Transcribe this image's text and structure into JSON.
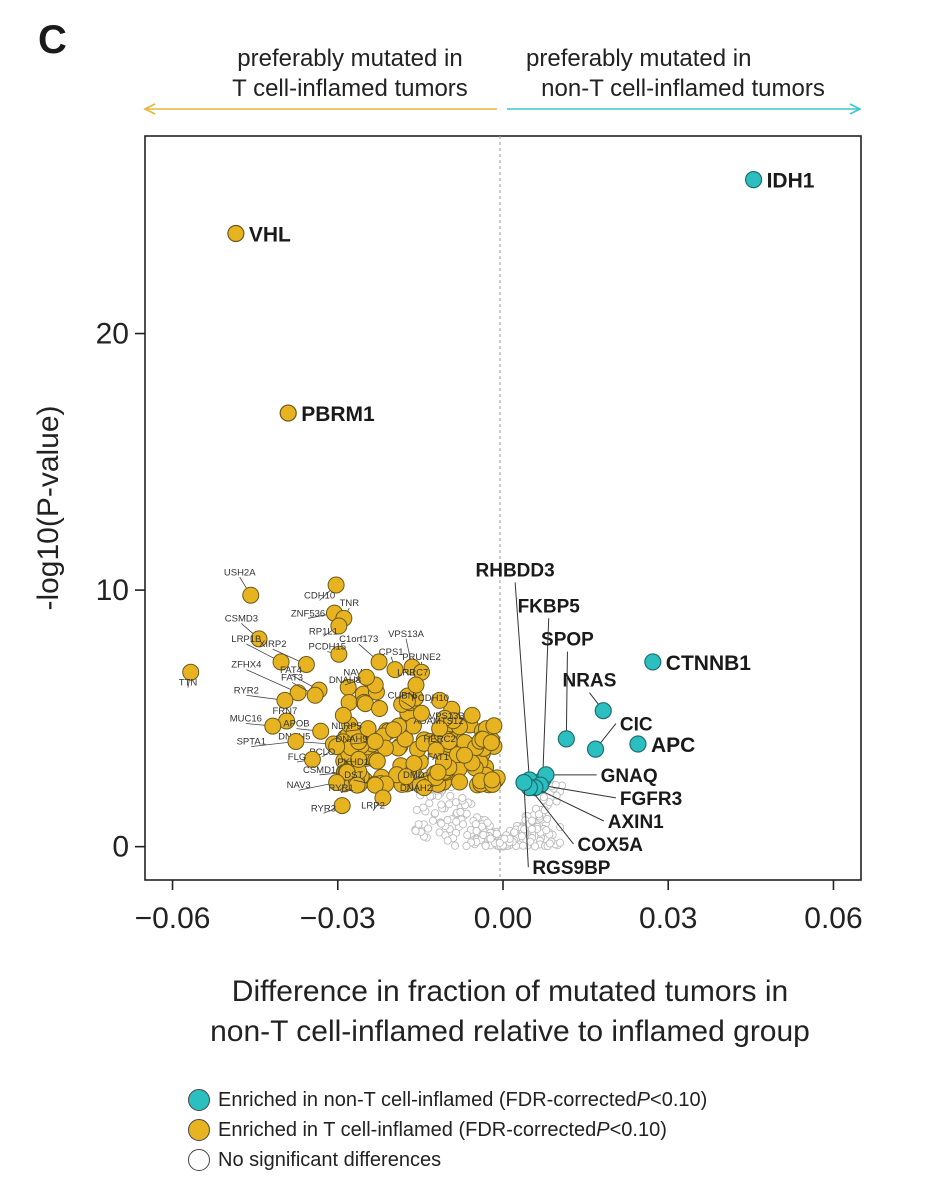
{
  "panel_label": "C",
  "colors": {
    "non_inflamed": "#2bbfc0",
    "inflamed": "#e7b320",
    "ns_fill": "#ffffff",
    "inflamed_arrow": "#e8b53a",
    "non_inflamed_arrow": "#3ec5cf"
  },
  "header": {
    "left_line1": "preferably mutated in",
    "left_line2": "T cell-inflamed tumors",
    "right_line1": "preferably mutated in",
    "right_line2": "non-T cell-inflamed tumors"
  },
  "chart_data": {
    "type": "scatter",
    "title": "",
    "xlabel_line1": "Difference in fraction of mutated tumors in",
    "xlabel_line2": "non-T cell-inflamed relative to inflamed group",
    "ylabel": "-log10(P-value)",
    "xlim": [
      -0.065,
      0.065
    ],
    "ylim": [
      -1.3,
      27.7
    ],
    "x_ticks": [
      -0.06,
      -0.03,
      0.0,
      0.03,
      0.06
    ],
    "x_tick_labels": [
      "−0.06",
      "−0.03",
      "0.00",
      "0.03",
      "0.06"
    ],
    "y_ticks": [
      0,
      10,
      20
    ],
    "y_tick_labels": [
      "0",
      "10",
      "20"
    ],
    "labeled_points": [
      {
        "gene": "IDH1",
        "x": 0.0455,
        "y": 26.0,
        "group": "non_inflamed",
        "label_pos": "right"
      },
      {
        "gene": "VHL",
        "x": -0.0485,
        "y": 23.9,
        "group": "inflamed",
        "label_pos": "right"
      },
      {
        "gene": "PBRM1",
        "x": -0.039,
        "y": 16.9,
        "group": "inflamed",
        "label_pos": "right"
      },
      {
        "gene": "CTNNB1",
        "x": 0.0272,
        "y": 7.2,
        "group": "non_inflamed",
        "label_pos": "right"
      },
      {
        "gene": "APC",
        "x": 0.0245,
        "y": 4.0,
        "group": "non_inflamed",
        "label_pos": "right"
      },
      {
        "gene": "NRAS",
        "x": 0.0182,
        "y": 5.3,
        "group": "non_inflamed",
        "label_x": 0.0157,
        "label_y": 6.0
      },
      {
        "gene": "CIC",
        "x": 0.0168,
        "y": 3.8,
        "group": "non_inflamed",
        "label_x": 0.0205,
        "label_y": 4.8
      },
      {
        "gene": "SPOP",
        "x": 0.0115,
        "y": 4.2,
        "group": "non_inflamed",
        "label_x": 0.0117,
        "label_y": 7.6
      },
      {
        "gene": "FKBP5",
        "x": 0.0072,
        "y": 2.6,
        "group": "non_inflamed",
        "label_x": 0.0083,
        "label_y": 8.9
      },
      {
        "gene": "RHBDD3",
        "x": 0.0048,
        "y": 2.6,
        "group": "non_inflamed",
        "label_x": 0.0022,
        "label_y": 10.3
      },
      {
        "gene": "GNAQ",
        "x": 0.0078,
        "y": 2.8,
        "group": "non_inflamed",
        "label_x": 0.017,
        "label_y": 2.8
      },
      {
        "gene": "FGFR3",
        "x": 0.0068,
        "y": 2.4,
        "group": "non_inflamed",
        "label_x": 0.0205,
        "label_y": 1.9
      },
      {
        "gene": "AXIN1",
        "x": 0.0058,
        "y": 2.3,
        "group": "non_inflamed",
        "label_x": 0.0183,
        "label_y": 1.0
      },
      {
        "gene": "COX5A",
        "x": 0.0048,
        "y": 2.3,
        "group": "non_inflamed",
        "label_x": 0.0128,
        "label_y": 0.1
      },
      {
        "gene": "RGS9BP",
        "x": 0.0038,
        "y": 2.5,
        "group": "non_inflamed",
        "label_x": 0.0046,
        "label_y": -0.8
      }
    ],
    "small_labeled_points": [
      {
        "gene": "TTN",
        "x": -0.0567,
        "y": 6.8,
        "label_x": -0.0572,
        "label_y": 6.2
      },
      {
        "gene": "USH2A",
        "x": -0.0458,
        "y": 9.8,
        "label_x": -0.0478,
        "label_y": 10.5
      },
      {
        "gene": "CSMD3",
        "x": -0.0443,
        "y": 8.1,
        "label_x": -0.0475,
        "label_y": 8.7
      },
      {
        "gene": "LRP1B",
        "x": -0.0403,
        "y": 7.2,
        "label_x": -0.0466,
        "label_y": 7.9
      },
      {
        "gene": "XIRP2",
        "x": -0.0357,
        "y": 7.1,
        "label_x": -0.0418,
        "label_y": 7.7
      },
      {
        "gene": "ZFHX4",
        "x": -0.0372,
        "y": 6.0,
        "label_x": -0.0466,
        "label_y": 6.9
      },
      {
        "gene": "RYR2",
        "x": -0.0396,
        "y": 5.7,
        "label_x": -0.0466,
        "label_y": 5.9
      },
      {
        "gene": "FAT4",
        "x": -0.0334,
        "y": 6.1,
        "label_x": -0.0385,
        "label_y": 6.7
      },
      {
        "gene": "FAT3",
        "x": -0.0341,
        "y": 5.9,
        "label_x": -0.0383,
        "label_y": 6.4
      },
      {
        "gene": "FRN7",
        "x": -0.0393,
        "y": 4.9,
        "label_x": -0.0396,
        "label_y": 5.1
      },
      {
        "gene": "MUC16",
        "x": -0.0418,
        "y": 4.7,
        "label_x": -0.0467,
        "label_y": 4.8
      },
      {
        "gene": "APOB",
        "x": -0.0331,
        "y": 4.5,
        "label_x": -0.0375,
        "label_y": 4.6
      },
      {
        "gene": "DNAH5",
        "x": -0.0308,
        "y": 4.0,
        "label_x": -0.0379,
        "label_y": 4.1
      },
      {
        "gene": "SPTA1",
        "x": -0.0376,
        "y": 4.1,
        "label_x": -0.0457,
        "label_y": 3.9
      },
      {
        "gene": "PCLO",
        "x": -0.0302,
        "y": 3.9,
        "label_x": -0.0328,
        "label_y": 3.5
      },
      {
        "gene": "FLG",
        "x": -0.0346,
        "y": 3.4,
        "label_x": -0.0374,
        "label_y": 3.3
      },
      {
        "gene": "PKHD1",
        "x": -0.0262,
        "y": 3.4,
        "label_x": -0.0272,
        "label_y": 3.1
      },
      {
        "gene": "CSMD1",
        "x": -0.0283,
        "y": 2.9,
        "label_x": -0.0333,
        "label_y": 2.8
      },
      {
        "gene": "NAV3",
        "x": -0.0302,
        "y": 2.5,
        "label_x": -0.0371,
        "label_y": 2.2
      },
      {
        "gene": "RYR1",
        "x": -0.0265,
        "y": 2.4,
        "label_x": -0.0294,
        "label_y": 2.1
      },
      {
        "gene": "RYR3",
        "x": -0.0292,
        "y": 1.6,
        "label_x": -0.0326,
        "label_y": 1.3
      },
      {
        "gene": "DST",
        "x": -0.0232,
        "y": 2.4,
        "label_x": -0.0271,
        "label_y": 2.6
      },
      {
        "gene": "LRP2",
        "x": -0.0218,
        "y": 1.9,
        "label_x": -0.0236,
        "label_y": 1.4
      },
      {
        "gene": "DNAH2",
        "x": -0.0143,
        "y": 2.3,
        "label_x": -0.0158,
        "label_y": 2.1
      },
      {
        "gene": "CDH10",
        "x": -0.0303,
        "y": 10.2,
        "label_x": -0.0333,
        "label_y": 9.6
      },
      {
        "gene": "ZNF536",
        "x": -0.0306,
        "y": 9.1,
        "label_x": -0.0354,
        "label_y": 8.9
      },
      {
        "gene": "TNR",
        "x": -0.0289,
        "y": 8.9,
        "label_x": -0.0279,
        "label_y": 9.3
      },
      {
        "gene": "RP1L1",
        "x": -0.0298,
        "y": 8.6,
        "label_x": -0.0326,
        "label_y": 8.2
      },
      {
        "gene": "PCDH15",
        "x": -0.0298,
        "y": 7.5,
        "label_x": -0.0319,
        "label_y": 7.6
      },
      {
        "gene": "C1orf173",
        "x": -0.0225,
        "y": 7.2,
        "label_x": -0.0262,
        "label_y": 7.9
      },
      {
        "gene": "VPS13A",
        "x": -0.0165,
        "y": 7.0,
        "label_x": -0.0176,
        "label_y": 8.1
      },
      {
        "gene": "CPS1",
        "x": -0.0196,
        "y": 6.9,
        "label_x": -0.0203,
        "label_y": 7.4
      },
      {
        "gene": "PRUNE2",
        "x": -0.0148,
        "y": 6.8,
        "label_x": -0.0148,
        "label_y": 7.2
      },
      {
        "gene": "LRRC7",
        "x": -0.0158,
        "y": 6.3,
        "label_x": -0.0164,
        "label_y": 6.6
      },
      {
        "gene": "NAV2",
        "x": -0.0232,
        "y": 6.3,
        "label_x": -0.0268,
        "label_y": 6.6
      },
      {
        "gene": "PCDH10",
        "x": -0.0115,
        "y": 5.7,
        "label_x": -0.0132,
        "label_y": 5.6
      },
      {
        "gene": "VPS13B",
        "x": -0.0106,
        "y": 5.0,
        "label_x": -0.0102,
        "label_y": 4.9
      },
      {
        "gene": "ADAMTS12",
        "x": -0.0115,
        "y": 4.6,
        "label_x": -0.0117,
        "label_y": 4.7
      },
      {
        "gene": "CUBN",
        "x": -0.0148,
        "y": 5.2,
        "label_x": -0.0185,
        "label_y": 5.7
      },
      {
        "gene": "HERC2",
        "x": -0.0098,
        "y": 4.1,
        "label_x": -0.0115,
        "label_y": 4.0
      },
      {
        "gene": "FAT1",
        "x": -0.0108,
        "y": 3.3,
        "label_x": -0.0118,
        "label_y": 3.3
      },
      {
        "gene": "DMD",
        "x": -0.0118,
        "y": 2.9,
        "label_x": -0.0162,
        "label_y": 2.6
      },
      {
        "gene": "NLRP5",
        "x": -0.0245,
        "y": 4.6,
        "label_x": -0.0284,
        "label_y": 4.5
      },
      {
        "gene": "DNAH9",
        "x": -0.0232,
        "y": 4.1,
        "label_x": -0.0275,
        "label_y": 4.0
      },
      {
        "gene": "DNAH8",
        "x": -0.0248,
        "y": 6.6,
        "label_x": -0.0287,
        "label_y": 6.3
      }
    ],
    "inflamed_cloud_n": 150,
    "inflamed_cloud_range": {
      "x": [
        -0.029,
        -0.0005
      ],
      "y": [
        2.4,
        6.6
      ]
    },
    "ns_cloud_n": 260,
    "legend": [
      {
        "label": "Enriched in non-T cell-inflamed (FDR-corrected ",
        "p": "P",
        "suffix": "<0.10)",
        "color": "#2bbfc0"
      },
      {
        "label": "Enriched in T cell-inflamed (FDR-corrected ",
        "p": "P",
        "suffix": "<0.10)",
        "color": "#e7b320"
      },
      {
        "label": "No significant differences",
        "p": "",
        "suffix": "",
        "color": "#ffffff"
      }
    ]
  }
}
